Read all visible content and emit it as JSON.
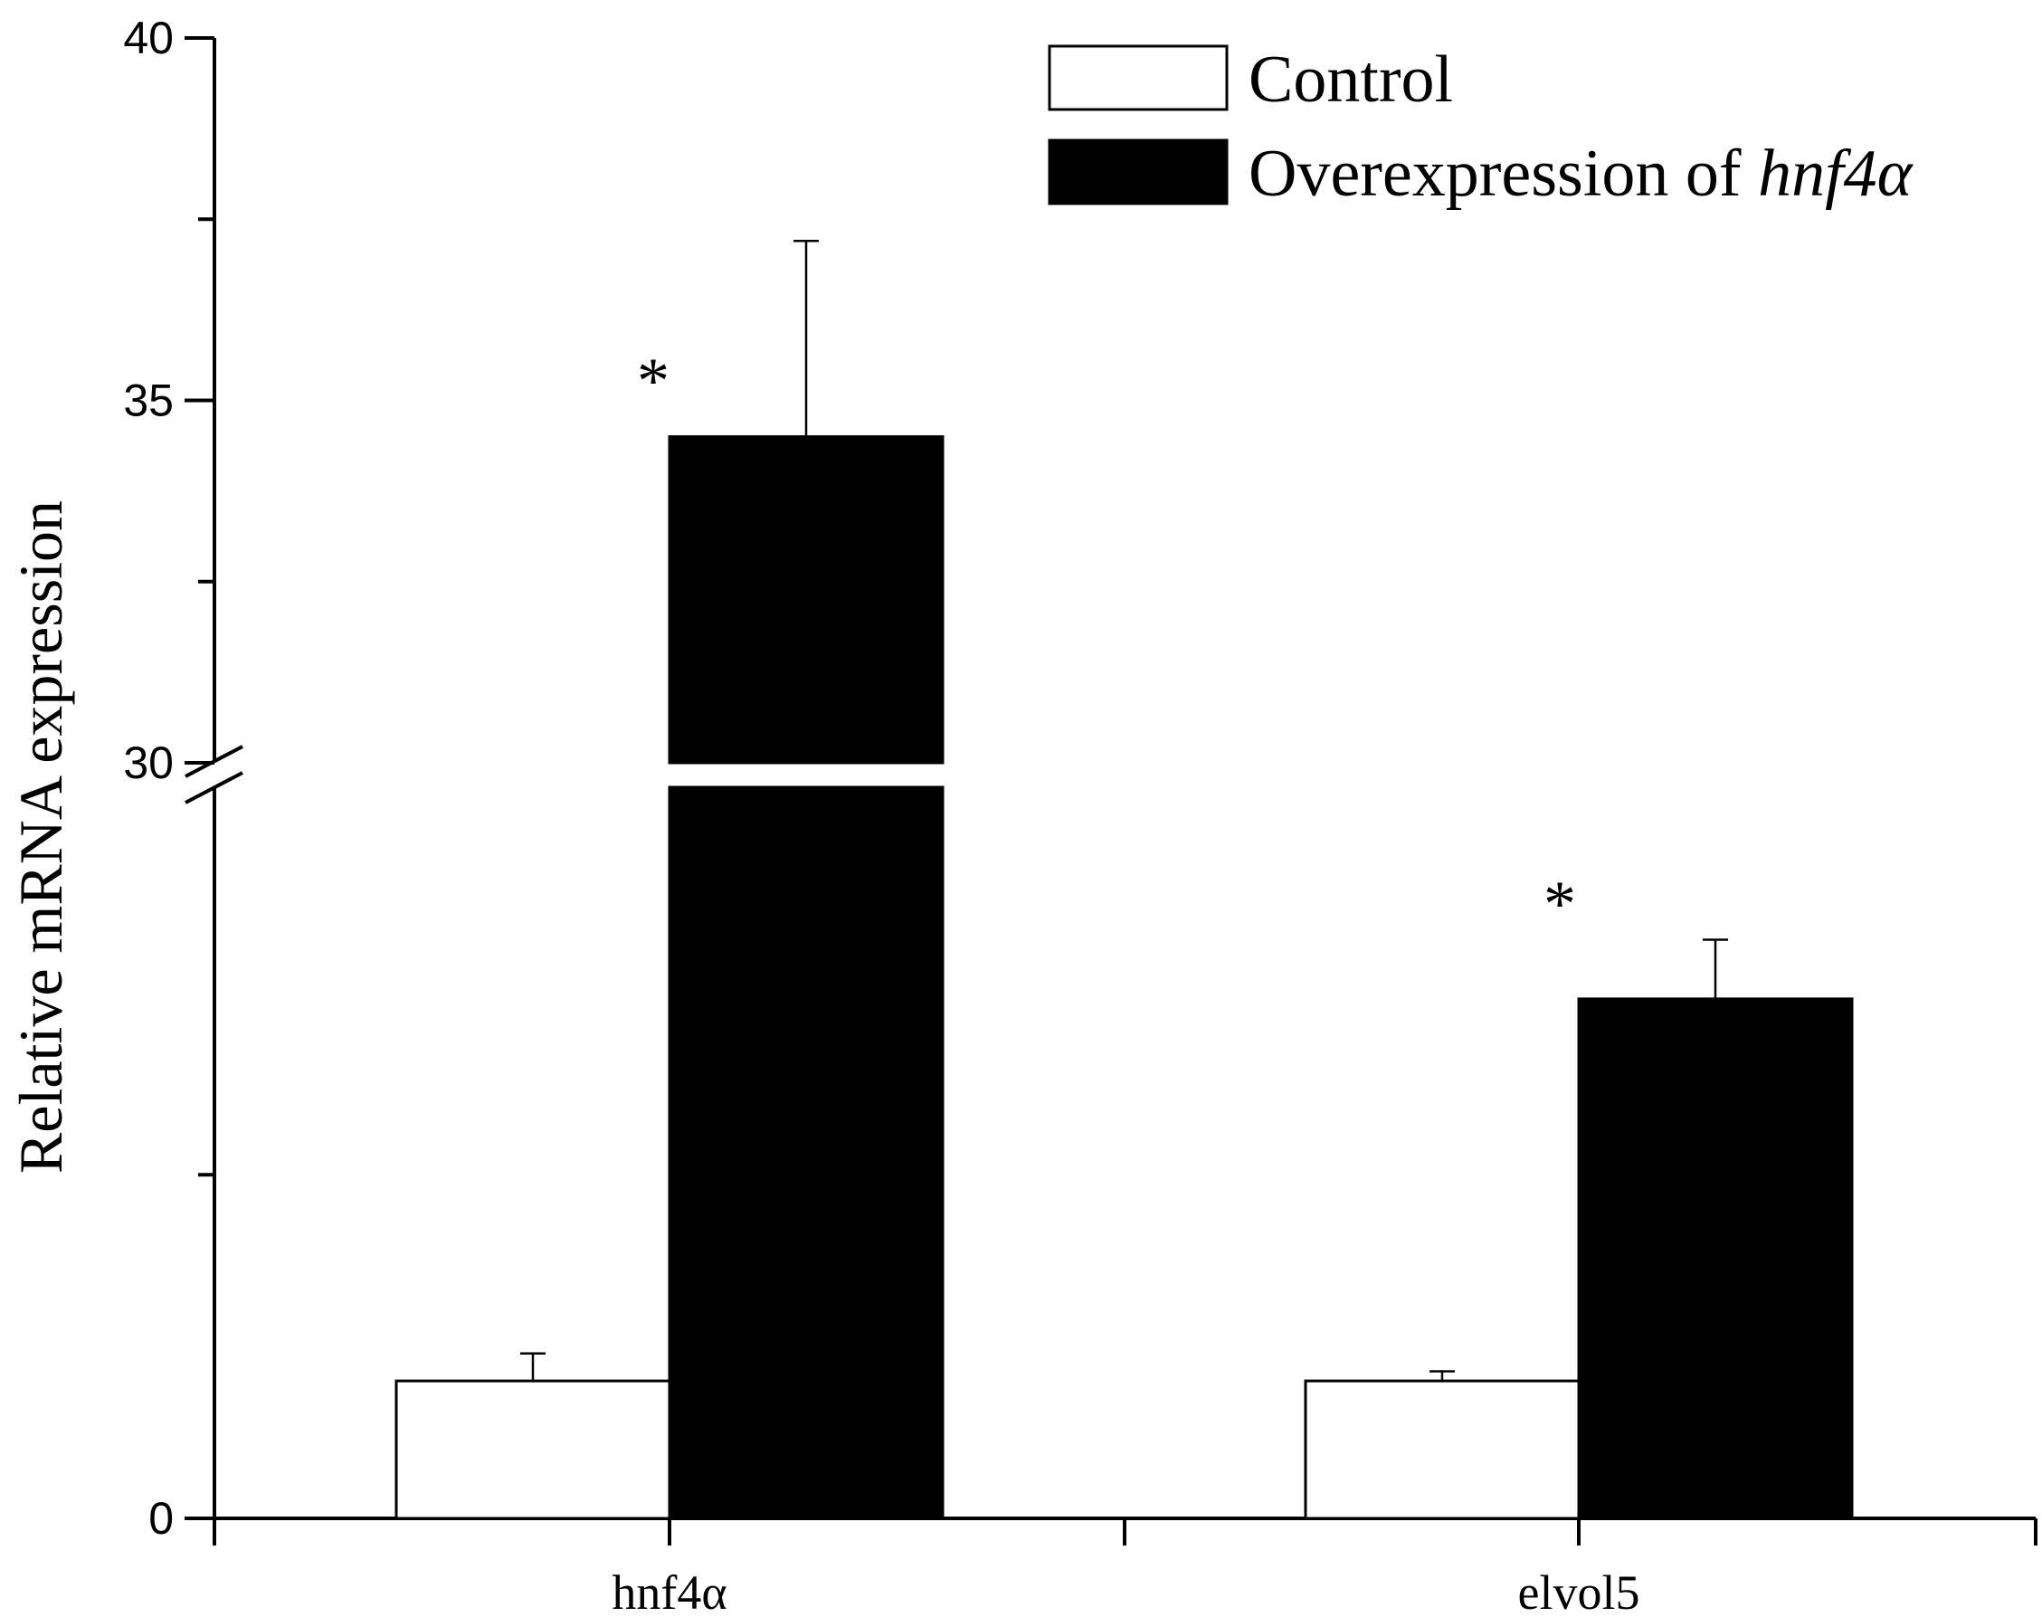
{
  "chart_data": {
    "type": "bar",
    "title": "",
    "xlabel": "",
    "ylabel": "Relative mRNA expression",
    "categories": [
      "hnf4α",
      "elvol5"
    ],
    "series": [
      {
        "name": "Control",
        "fill": "#ffffff",
        "values": [
          1.0,
          1.0
        ],
        "errors": [
          0.2,
          0.07
        ]
      },
      {
        "name": "Overexpression of ",
        "name_italic": "hnf4α",
        "fill": "#000000",
        "values": [
          34.5,
          3.78
        ],
        "errors": [
          2.7,
          0.43
        ]
      }
    ],
    "significance": [
      {
        "category": "hnf4α",
        "label": "*"
      },
      {
        "category": "elvol5",
        "label": "*"
      }
    ],
    "y_axis": {
      "break": true,
      "lower_segment": {
        "range": [
          0,
          5.3
        ],
        "tick_labels": [
          {
            "value": 0,
            "label": "0"
          }
        ],
        "unlabeled_ticks": [
          2.5
        ]
      },
      "upper_segment": {
        "range": [
          30,
          40
        ],
        "tick_labels": [
          {
            "value": 30,
            "label": "30"
          },
          {
            "value": 35,
            "label": "35"
          },
          {
            "value": 40,
            "label": "40"
          }
        ],
        "unlabeled_ticks": [
          32.5,
          37.5
        ]
      }
    },
    "legend_position": "top-right",
    "grid": false
  }
}
